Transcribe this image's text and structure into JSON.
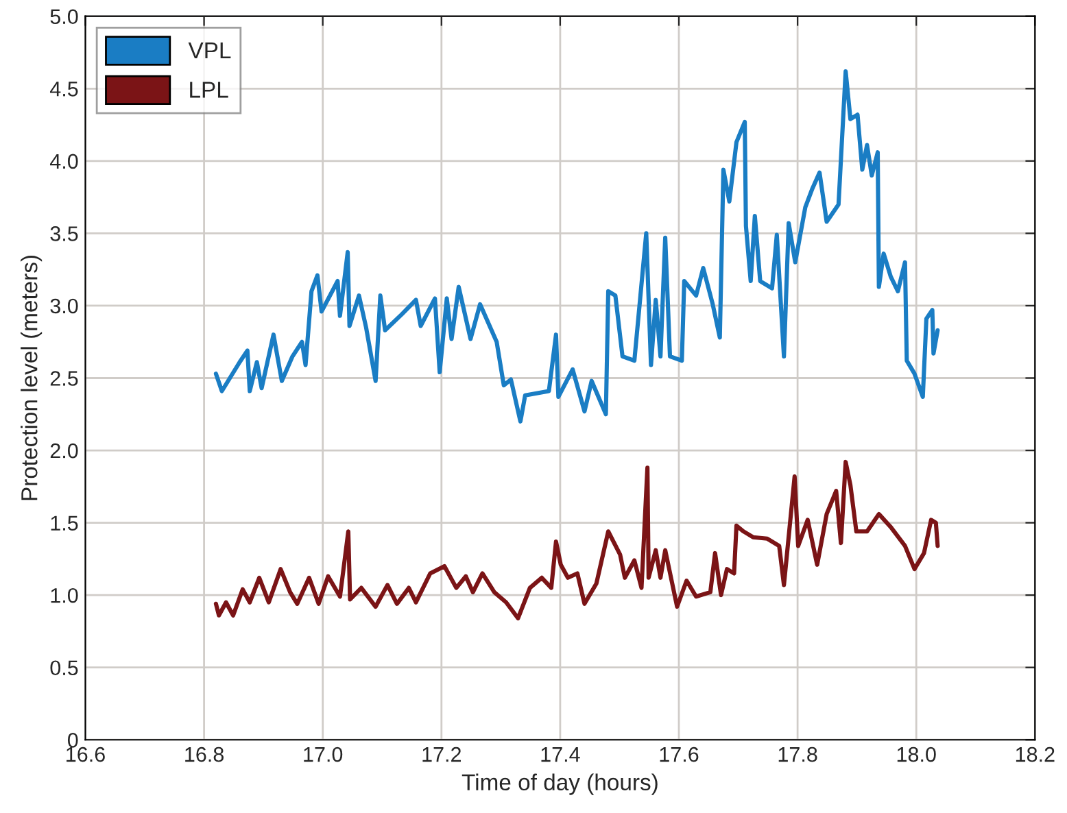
{
  "chart_data": {
    "type": "line",
    "xlabel": "Time of day (hours)",
    "ylabel": "Protection level (meters)",
    "xlim": [
      16.6,
      18.2
    ],
    "xticks": [
      {
        "value": 16.6,
        "label": "16.6"
      },
      {
        "value": 16.8,
        "label": "16.8"
      },
      {
        "value": 17.0,
        "label": "17.0"
      },
      {
        "value": 17.2,
        "label": "17.2"
      },
      {
        "value": 17.4,
        "label": "17.4"
      },
      {
        "value": 17.6,
        "label": "17.6"
      },
      {
        "value": 17.8,
        "label": "17.8"
      },
      {
        "value": 18.0,
        "label": "18.0"
      },
      {
        "value": 18.2,
        "label": "18.2"
      }
    ],
    "ylim": [
      0,
      5
    ],
    "yticks": [
      0,
      {
        "value": 0.5,
        "label": "0.5"
      },
      {
        "value": 1.0,
        "label": "1.0"
      },
      {
        "value": 1.5,
        "label": "1.5"
      },
      {
        "value": 2.0,
        "label": "2.0"
      },
      {
        "value": 2.5,
        "label": "2.5"
      },
      {
        "value": 3.0,
        "label": "3.0"
      },
      {
        "value": 3.5,
        "label": "3.5"
      },
      {
        "value": 4.0,
        "label": "4.0"
      },
      {
        "value": 4.5,
        "label": "4.5"
      },
      {
        "value": 5.0,
        "label": "5.0"
      }
    ],
    "grid": true,
    "legend": "top left",
    "series": [
      {
        "name": "VPL",
        "color": "#1a7dc4",
        "x": [
          16.82,
          16.83,
          16.86,
          16.873,
          16.877,
          16.889,
          16.897,
          16.917,
          16.931,
          16.949,
          16.965,
          16.971,
          16.981,
          16.991,
          16.998,
          17.025,
          17.029,
          17.042,
          17.045,
          17.061,
          17.073,
          17.089,
          17.097,
          17.105,
          17.133,
          17.157,
          17.165,
          17.189,
          17.197,
          17.209,
          17.217,
          17.229,
          17.249,
          17.265,
          17.293,
          17.305,
          17.317,
          17.333,
          17.341,
          17.381,
          17.393,
          17.397,
          17.421,
          17.441,
          17.453,
          17.477,
          17.481,
          17.493,
          17.505,
          17.525,
          17.545,
          17.553,
          17.561,
          17.569,
          17.577,
          17.585,
          17.605,
          17.609,
          17.629,
          17.641,
          17.657,
          17.669,
          17.675,
          17.685,
          17.697,
          17.711,
          17.713,
          17.721,
          17.728,
          17.737,
          17.757,
          17.765,
          17.777,
          17.785,
          17.796,
          17.813,
          17.825,
          17.837,
          17.849,
          17.869,
          17.881,
          17.889,
          17.901,
          17.909,
          17.917,
          17.925,
          17.935,
          17.937,
          17.945,
          17.957,
          17.969,
          17.981,
          17.984,
          17.997,
          18.011,
          18.017,
          18.027,
          18.029,
          18.036
        ],
        "values": [
          2.53,
          2.41,
          2.61,
          2.69,
          2.41,
          2.61,
          2.43,
          2.8,
          2.48,
          2.65,
          2.75,
          2.59,
          3.1,
          3.21,
          2.96,
          3.17,
          2.93,
          3.37,
          2.86,
          3.07,
          2.85,
          2.48,
          3.07,
          2.83,
          2.94,
          3.04,
          2.86,
          3.05,
          2.54,
          3.05,
          2.77,
          3.13,
          2.77,
          3.01,
          2.75,
          2.45,
          2.49,
          2.2,
          2.38,
          2.41,
          2.8,
          2.37,
          2.56,
          2.27,
          2.48,
          2.25,
          3.1,
          3.07,
          2.65,
          2.62,
          3.5,
          2.59,
          3.04,
          2.65,
          3.47,
          2.65,
          2.62,
          3.17,
          3.07,
          3.26,
          3.01,
          2.78,
          3.94,
          3.72,
          4.13,
          4.27,
          3.55,
          3.17,
          3.62,
          3.17,
          3.12,
          3.49,
          2.65,
          3.57,
          3.3,
          3.68,
          3.81,
          3.92,
          3.58,
          3.7,
          4.62,
          4.29,
          4.32,
          3.94,
          4.11,
          3.9,
          4.06,
          3.13,
          3.36,
          3.2,
          3.1,
          3.3,
          2.62,
          2.53,
          2.37,
          2.91,
          2.97,
          2.67,
          2.83
        ]
      },
      {
        "name": "LPL",
        "color": "#7b1416",
        "x": [
          16.82,
          16.825,
          16.837,
          16.849,
          16.865,
          16.877,
          16.893,
          16.909,
          16.929,
          16.945,
          16.957,
          16.977,
          16.993,
          17.009,
          17.029,
          17.043,
          17.046,
          17.065,
          17.089,
          17.109,
          17.125,
          17.145,
          17.157,
          17.181,
          17.205,
          17.225,
          17.241,
          17.253,
          17.269,
          17.289,
          17.309,
          17.329,
          17.349,
          17.369,
          17.385,
          17.393,
          17.401,
          17.413,
          17.429,
          17.441,
          17.461,
          17.481,
          17.501,
          17.509,
          17.525,
          17.537,
          17.547,
          17.549,
          17.561,
          17.569,
          17.577,
          17.597,
          17.613,
          17.629,
          17.653,
          17.661,
          17.671,
          17.681,
          17.693,
          17.697,
          17.709,
          17.725,
          17.749,
          17.769,
          17.777,
          17.795,
          17.801,
          17.817,
          17.833,
          17.849,
          17.865,
          17.873,
          17.881,
          17.889,
          17.899,
          17.917,
          17.937,
          17.957,
          17.981,
          17.997,
          18.013,
          18.025,
          18.033,
          18.036
        ],
        "values": [
          0.94,
          0.86,
          0.95,
          0.86,
          1.04,
          0.95,
          1.12,
          0.95,
          1.18,
          1.02,
          0.94,
          1.12,
          0.94,
          1.13,
          0.99,
          1.44,
          0.97,
          1.05,
          0.92,
          1.07,
          0.94,
          1.05,
          0.95,
          1.15,
          1.2,
          1.05,
          1.13,
          1.02,
          1.15,
          1.02,
          0.95,
          0.84,
          1.05,
          1.12,
          1.05,
          1.37,
          1.21,
          1.12,
          1.15,
          0.94,
          1.08,
          1.44,
          1.28,
          1.12,
          1.24,
          1.05,
          1.88,
          1.12,
          1.31,
          1.12,
          1.31,
          0.92,
          1.1,
          0.99,
          1.02,
          1.29,
          1.0,
          1.18,
          1.15,
          1.48,
          1.44,
          1.4,
          1.39,
          1.34,
          1.07,
          1.82,
          1.34,
          1.52,
          1.21,
          1.56,
          1.72,
          1.36,
          1.92,
          1.76,
          1.44,
          1.44,
          1.56,
          1.47,
          1.34,
          1.18,
          1.29,
          1.52,
          1.5,
          1.34
        ]
      }
    ]
  }
}
